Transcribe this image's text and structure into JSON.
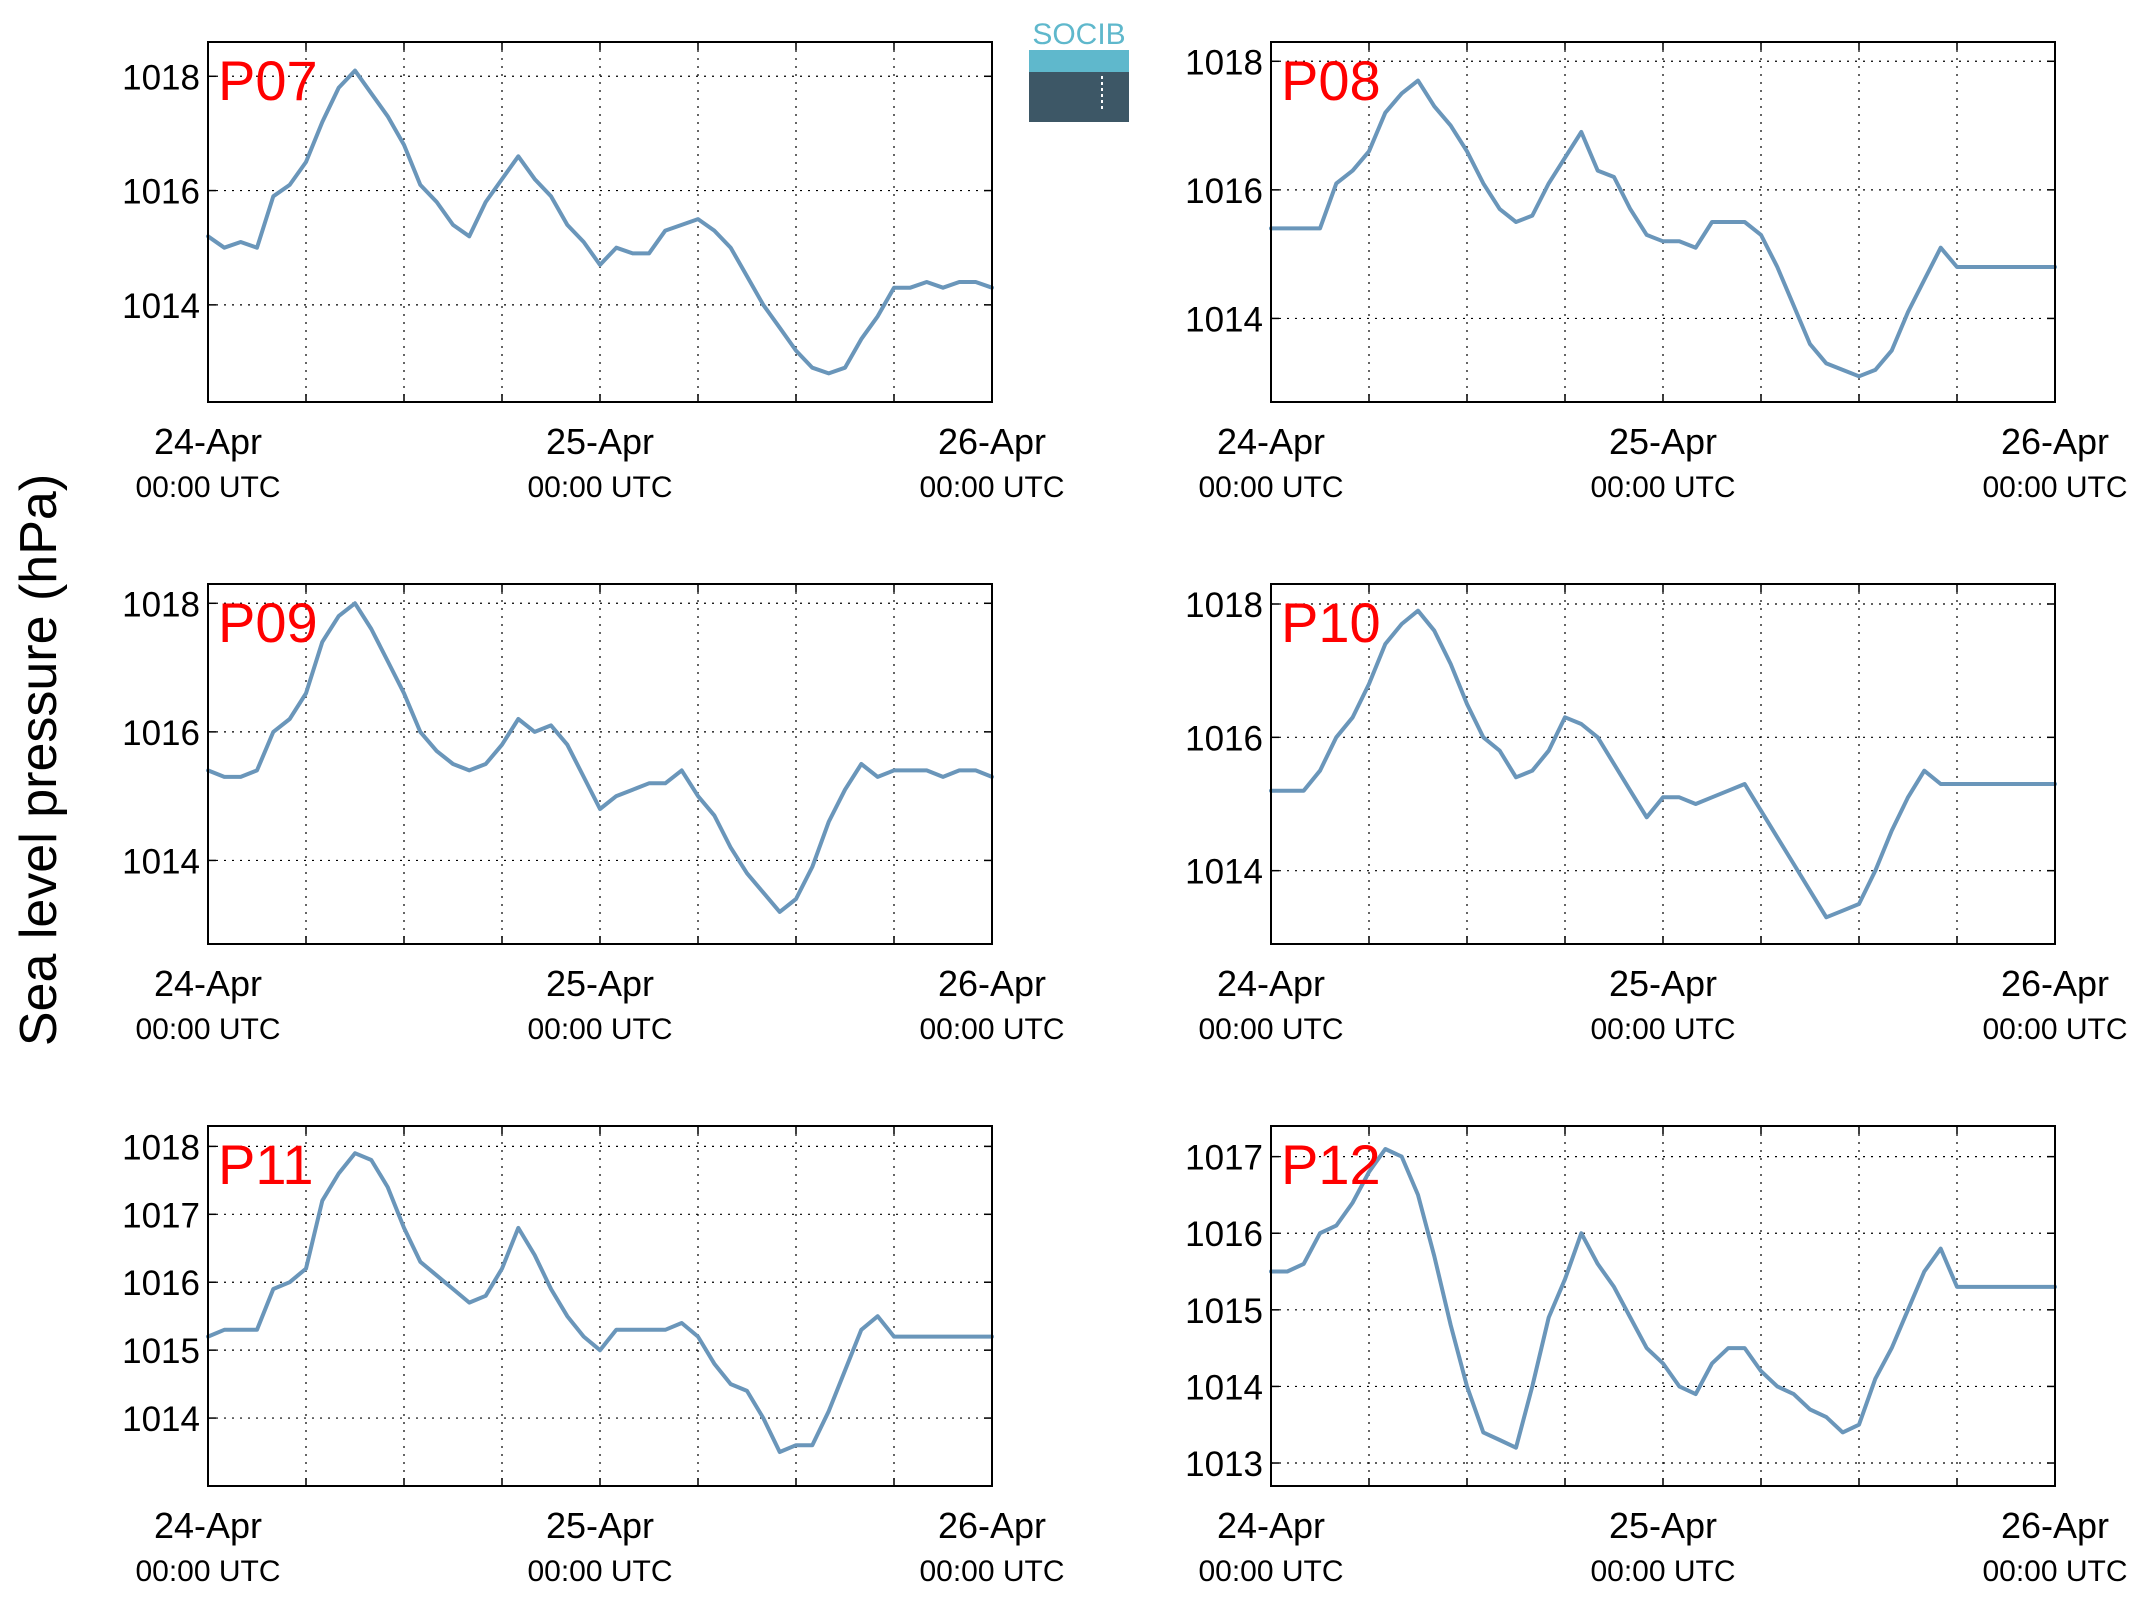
{
  "figure": {
    "ylabel": "Sea level pressure (hPa)",
    "logo_text": "SOCIB",
    "line_color": "#6a96ba",
    "label_color": "#ff0000"
  },
  "chart_data": [
    {
      "type": "line",
      "label": "P07",
      "x_range_hours": [
        0,
        48
      ],
      "ylim": [
        1012.3,
        1018.6
      ],
      "yticks": [
        "1014",
        "1016",
        "1018"
      ],
      "ytick_values": [
        1014,
        1016,
        1018
      ],
      "xticks": [
        {
          "day": "24-Apr",
          "time": "00:00 UTC"
        },
        {
          "day": "25-Apr",
          "time": "00:00 UTC"
        },
        {
          "day": "26-Apr",
          "time": "00:00 UTC"
        }
      ],
      "grid": true,
      "x": [
        0,
        1,
        2,
        3,
        4,
        5,
        6,
        7,
        8,
        9,
        10,
        11,
        12,
        13,
        14,
        15,
        16,
        17,
        18,
        19,
        20,
        21,
        22,
        23,
        24,
        25,
        26,
        27,
        28,
        29,
        30,
        31,
        32,
        33,
        34,
        35,
        36,
        37,
        38,
        39,
        40,
        41,
        42,
        43,
        44,
        45,
        46,
        47,
        48
      ],
      "values": [
        1015.2,
        1015.0,
        1015.1,
        1015.0,
        1015.9,
        1016.1,
        1016.5,
        1017.2,
        1017.8,
        1018.1,
        1017.7,
        1017.3,
        1016.8,
        1016.1,
        1015.8,
        1015.4,
        1015.2,
        1015.8,
        1016.2,
        1016.6,
        1016.2,
        1015.9,
        1015.4,
        1015.1,
        1014.7,
        1015.0,
        1014.9,
        1014.9,
        1015.3,
        1015.4,
        1015.5,
        1015.3,
        1015.0,
        1014.5,
        1014.0,
        1013.6,
        1013.2,
        1012.9,
        1012.8,
        1012.9,
        1013.4,
        1013.8,
        1014.3,
        1014.3,
        1014.4,
        1014.3,
        1014.4,
        1014.4,
        1014.3
      ]
    },
    {
      "type": "line",
      "label": "P08",
      "x_range_hours": [
        0,
        48
      ],
      "ylim": [
        1012.7,
        1018.3
      ],
      "yticks": [
        "1014",
        "1016",
        "1018"
      ],
      "ytick_values": [
        1014,
        1016,
        1018
      ],
      "xticks": [
        {
          "day": "24-Apr",
          "time": "00:00 UTC"
        },
        {
          "day": "25-Apr",
          "time": "00:00 UTC"
        },
        {
          "day": "26-Apr",
          "time": "00:00 UTC"
        }
      ],
      "grid": true,
      "x": [
        0,
        1,
        2,
        3,
        4,
        5,
        6,
        7,
        8,
        9,
        10,
        11,
        12,
        13,
        14,
        15,
        16,
        17,
        18,
        19,
        20,
        21,
        22,
        23,
        24,
        25,
        26,
        27,
        28,
        29,
        30,
        31,
        32,
        33,
        34,
        35,
        36,
        37,
        38,
        39,
        40,
        41,
        42,
        43,
        44,
        45,
        46,
        47,
        48
      ],
      "values": [
        1015.4,
        1015.4,
        1015.4,
        1015.4,
        1016.1,
        1016.3,
        1016.6,
        1017.2,
        1017.5,
        1017.7,
        1017.3,
        1017.0,
        1016.6,
        1016.1,
        1015.7,
        1015.5,
        1015.6,
        1016.1,
        1016.5,
        1016.9,
        1016.3,
        1016.2,
        1015.7,
        1015.3,
        1015.2,
        1015.2,
        1015.1,
        1015.5,
        1015.5,
        1015.5,
        1015.3,
        1014.8,
        1014.2,
        1013.6,
        1013.3,
        1013.2,
        1013.1,
        1013.2,
        1013.5,
        1014.1,
        1014.6,
        1015.1,
        1014.8,
        1014.8,
        1014.8,
        1014.8,
        1014.8,
        1014.8,
        1014.8
      ]
    },
    {
      "type": "line",
      "label": "P09",
      "x_range_hours": [
        0,
        48
      ],
      "ylim": [
        1012.7,
        1018.3
      ],
      "yticks": [
        "1014",
        "1016",
        "1018"
      ],
      "ytick_values": [
        1014,
        1016,
        1018
      ],
      "xticks": [
        {
          "day": "24-Apr",
          "time": "00:00 UTC"
        },
        {
          "day": "25-Apr",
          "time": "00:00 UTC"
        },
        {
          "day": "26-Apr",
          "time": "00:00 UTC"
        }
      ],
      "grid": true,
      "x": [
        0,
        1,
        2,
        3,
        4,
        5,
        6,
        7,
        8,
        9,
        10,
        11,
        12,
        13,
        14,
        15,
        16,
        17,
        18,
        19,
        20,
        21,
        22,
        23,
        24,
        25,
        26,
        27,
        28,
        29,
        30,
        31,
        32,
        33,
        34,
        35,
        36,
        37,
        38,
        39,
        40,
        41,
        42,
        43,
        44,
        45,
        46,
        47,
        48
      ],
      "values": [
        1015.4,
        1015.3,
        1015.3,
        1015.4,
        1016.0,
        1016.2,
        1016.6,
        1017.4,
        1017.8,
        1018.0,
        1017.6,
        1017.1,
        1016.6,
        1016.0,
        1015.7,
        1015.5,
        1015.4,
        1015.5,
        1015.8,
        1016.2,
        1016.0,
        1016.1,
        1015.8,
        1015.3,
        1014.8,
        1015.0,
        1015.1,
        1015.2,
        1015.2,
        1015.4,
        1015.0,
        1014.7,
        1014.2,
        1013.8,
        1013.5,
        1013.2,
        1013.4,
        1013.9,
        1014.6,
        1015.1,
        1015.5,
        1015.3,
        1015.4,
        1015.4,
        1015.4,
        1015.3,
        1015.4,
        1015.4,
        1015.3
      ]
    },
    {
      "type": "line",
      "label": "P10",
      "x_range_hours": [
        0,
        48
      ],
      "ylim": [
        1012.9,
        1018.3
      ],
      "yticks": [
        "1014",
        "1016",
        "1018"
      ],
      "ytick_values": [
        1014,
        1016,
        1018
      ],
      "xticks": [
        {
          "day": "24-Apr",
          "time": "00:00 UTC"
        },
        {
          "day": "25-Apr",
          "time": "00:00 UTC"
        },
        {
          "day": "26-Apr",
          "time": "00:00 UTC"
        }
      ],
      "grid": true,
      "x": [
        0,
        1,
        2,
        3,
        4,
        5,
        6,
        7,
        8,
        9,
        10,
        11,
        12,
        13,
        14,
        15,
        16,
        17,
        18,
        19,
        20,
        21,
        22,
        23,
        24,
        25,
        26,
        27,
        28,
        29,
        30,
        31,
        32,
        33,
        34,
        35,
        36,
        37,
        38,
        39,
        40,
        41,
        42,
        43,
        44,
        45,
        46,
        47,
        48
      ],
      "values": [
        1015.2,
        1015.2,
        1015.2,
        1015.5,
        1016.0,
        1016.3,
        1016.8,
        1017.4,
        1017.7,
        1017.9,
        1017.6,
        1017.1,
        1016.5,
        1016.0,
        1015.8,
        1015.4,
        1015.5,
        1015.8,
        1016.3,
        1016.2,
        1016.0,
        1015.6,
        1015.2,
        1014.8,
        1015.1,
        1015.1,
        1015.0,
        1015.1,
        1015.2,
        1015.3,
        1014.9,
        1014.5,
        1014.1,
        1013.7,
        1013.3,
        1013.4,
        1013.5,
        1014.0,
        1014.6,
        1015.1,
        1015.5,
        1015.3,
        1015.3,
        1015.3,
        1015.3,
        1015.3,
        1015.3,
        1015.3,
        1015.3
      ]
    },
    {
      "type": "line",
      "label": "P11",
      "x_range_hours": [
        0,
        48
      ],
      "ylim": [
        1013.0,
        1018.3
      ],
      "yticks": [
        "1014",
        "1015",
        "1016",
        "1017",
        "1018"
      ],
      "ytick_values": [
        1014,
        1015,
        1016,
        1017,
        1018
      ],
      "xticks": [
        {
          "day": "24-Apr",
          "time": "00:00 UTC"
        },
        {
          "day": "25-Apr",
          "time": "00:00 UTC"
        },
        {
          "day": "26-Apr",
          "time": "00:00 UTC"
        }
      ],
      "grid": true,
      "x": [
        0,
        1,
        2,
        3,
        4,
        5,
        6,
        7,
        8,
        9,
        10,
        11,
        12,
        13,
        14,
        15,
        16,
        17,
        18,
        19,
        20,
        21,
        22,
        23,
        24,
        25,
        26,
        27,
        28,
        29,
        30,
        31,
        32,
        33,
        34,
        35,
        36,
        37,
        38,
        39,
        40,
        41,
        42,
        43,
        44,
        45,
        46,
        47,
        48
      ],
      "values": [
        1015.2,
        1015.3,
        1015.3,
        1015.3,
        1015.9,
        1016.0,
        1016.2,
        1017.2,
        1017.6,
        1017.9,
        1017.8,
        1017.4,
        1016.8,
        1016.3,
        1016.1,
        1015.9,
        1015.7,
        1015.8,
        1016.2,
        1016.8,
        1016.4,
        1015.9,
        1015.5,
        1015.2,
        1015.0,
        1015.3,
        1015.3,
        1015.3,
        1015.3,
        1015.4,
        1015.2,
        1014.8,
        1014.5,
        1014.4,
        1014.0,
        1013.5,
        1013.6,
        1013.6,
        1014.1,
        1014.7,
        1015.3,
        1015.5,
        1015.2,
        1015.2,
        1015.2,
        1015.2,
        1015.2,
        1015.2,
        1015.2
      ]
    },
    {
      "type": "line",
      "label": "P12",
      "x_range_hours": [
        0,
        48
      ],
      "ylim": [
        1012.7,
        1017.4
      ],
      "yticks": [
        "1013",
        "1014",
        "1015",
        "1016",
        "1017"
      ],
      "ytick_values": [
        1013,
        1014,
        1015,
        1016,
        1017
      ],
      "xticks": [
        {
          "day": "24-Apr",
          "time": "00:00 UTC"
        },
        {
          "day": "25-Apr",
          "time": "00:00 UTC"
        },
        {
          "day": "26-Apr",
          "time": "00:00 UTC"
        }
      ],
      "grid": true,
      "x": [
        0,
        1,
        2,
        3,
        4,
        5,
        6,
        7,
        8,
        9,
        10,
        11,
        12,
        13,
        14,
        15,
        16,
        17,
        18,
        19,
        20,
        21,
        22,
        23,
        24,
        25,
        26,
        27,
        28,
        29,
        30,
        31,
        32,
        33,
        34,
        35,
        36,
        37,
        38,
        39,
        40,
        41,
        42,
        43,
        44,
        45,
        46,
        47,
        48
      ],
      "values": [
        1015.5,
        1015.5,
        1015.6,
        1016.0,
        1016.1,
        1016.4,
        1016.8,
        1017.1,
        1017.0,
        1016.5,
        1015.7,
        1014.8,
        1014.0,
        1013.4,
        1013.3,
        1013.2,
        1014.0,
        1014.9,
        1015.4,
        1016.0,
        1015.6,
        1015.3,
        1014.9,
        1014.5,
        1014.3,
        1014.0,
        1013.9,
        1014.3,
        1014.5,
        1014.5,
        1014.2,
        1014.0,
        1013.9,
        1013.7,
        1013.6,
        1013.4,
        1013.5,
        1014.1,
        1014.5,
        1015.0,
        1015.5,
        1015.8,
        1015.3,
        1015.3,
        1015.3,
        1015.3,
        1015.3,
        1015.3,
        1015.3
      ]
    }
  ]
}
